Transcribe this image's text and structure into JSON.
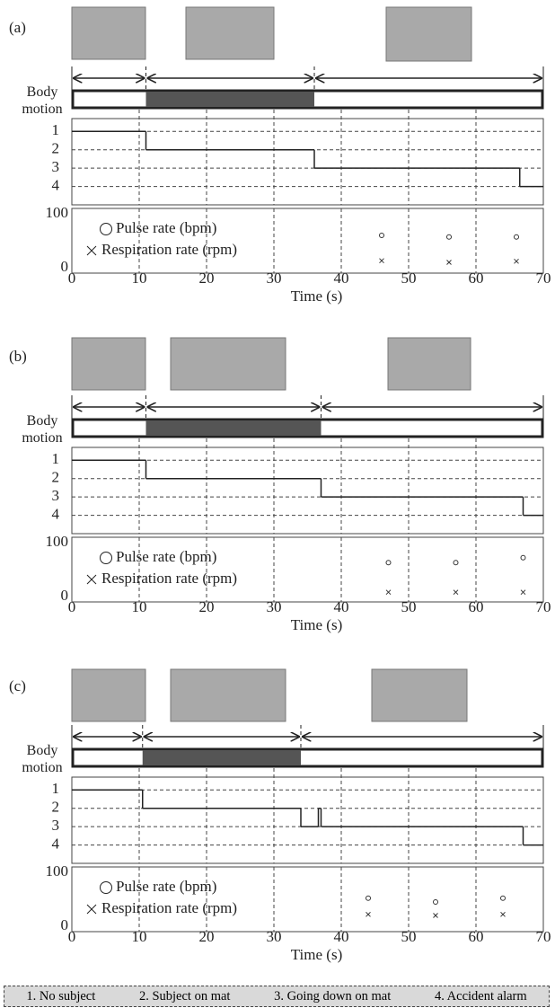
{
  "chart_data": [
    {
      "type": "step",
      "label": "(a)",
      "body_motion_label": "Body motion",
      "phase_bounds": [
        0,
        11,
        36,
        70
      ],
      "motion_interval": [
        11,
        36
      ],
      "state": {
        "x": [
          0,
          11,
          36,
          66.5
        ],
        "values": [
          1,
          2,
          3,
          4
        ]
      },
      "state_ylim": [
        0.3,
        5
      ],
      "state_yticks": [
        1,
        2,
        3,
        4
      ],
      "xlim": [
        0,
        70
      ],
      "xticks": [
        0,
        10,
        20,
        30,
        40,
        50,
        60,
        70
      ],
      "xlabel": "Time (s)",
      "ylim": [
        -10,
        110
      ],
      "yticks": [
        0,
        100
      ],
      "series": [
        {
          "name": "Pulse rate  (bpm)",
          "marker": "circle",
          "x": [
            46,
            56,
            66
          ],
          "values": [
            60,
            57,
            57
          ]
        },
        {
          "name": "Respiration rate  (rpm)",
          "marker": "cross",
          "x": [
            46,
            56,
            66
          ],
          "values": [
            13,
            10,
            12
          ]
        }
      ]
    },
    {
      "type": "step",
      "label": "(b)",
      "body_motion_label": "Body motion",
      "phase_bounds": [
        0,
        11,
        37,
        70
      ],
      "motion_interval": [
        11,
        37
      ],
      "state": {
        "x": [
          0,
          11,
          37,
          67
        ],
        "values": [
          1,
          2,
          3,
          4
        ]
      },
      "state_ylim": [
        0.3,
        5
      ],
      "state_yticks": [
        1,
        2,
        3,
        4
      ],
      "xlim": [
        0,
        70
      ],
      "xticks": [
        0,
        10,
        20,
        30,
        40,
        50,
        60,
        70
      ],
      "xlabel": "Time (s)",
      "ylim": [
        -10,
        110
      ],
      "yticks": [
        0,
        100
      ],
      "series": [
        {
          "name": "Pulse rate  (bpm)",
          "marker": "circle",
          "x": [
            47,
            57,
            67
          ],
          "values": [
            63,
            63,
            72
          ]
        },
        {
          "name": "Respiration rate  (rpm)",
          "marker": "cross",
          "x": [
            47,
            57,
            67
          ],
          "values": [
            8,
            8,
            8
          ]
        }
      ]
    },
    {
      "type": "step",
      "label": "(c)",
      "body_motion_label": "Body motion",
      "phase_bounds": [
        0,
        10.5,
        34,
        70
      ],
      "motion_interval": [
        10.5,
        34
      ],
      "state": {
        "x": [
          0,
          10.5,
          34,
          36.6,
          37,
          67
        ],
        "values": [
          1,
          2,
          3,
          2,
          3,
          4
        ]
      },
      "state_ylim": [
        0.3,
        5
      ],
      "state_yticks": [
        1,
        2,
        3,
        4
      ],
      "xlim": [
        0,
        70
      ],
      "xticks": [
        0,
        10,
        20,
        30,
        40,
        50,
        60,
        70
      ],
      "xlabel": "Time (s)",
      "ylim": [
        -10,
        110
      ],
      "yticks": [
        0,
        100
      ],
      "series": [
        {
          "name": "Pulse rate  (bpm)",
          "marker": "circle",
          "x": [
            44,
            54,
            64
          ],
          "values": [
            52,
            45,
            52
          ]
        },
        {
          "name": "Respiration rate  (rpm)",
          "marker": "cross",
          "x": [
            44,
            54,
            64
          ],
          "values": [
            22,
            20,
            22
          ]
        }
      ]
    }
  ],
  "state_legend": [
    "1. No subject",
    "2. Subject on mat",
    "3. Going down on mat",
    "4. Accident alarm"
  ]
}
